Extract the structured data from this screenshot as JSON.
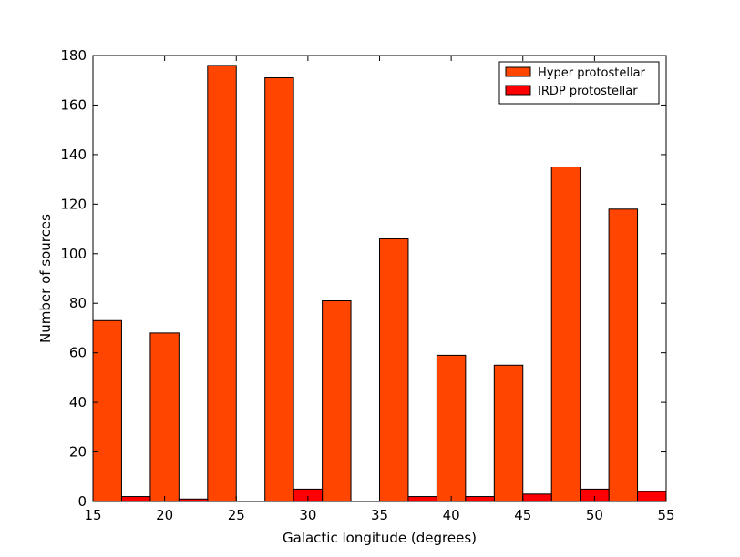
{
  "chart_data": {
    "type": "bar",
    "title": "",
    "xlabel": "Galactic longitude (degrees)",
    "ylabel": "Number of sources",
    "xlim": [
      15,
      55
    ],
    "ylim": [
      0,
      180
    ],
    "x_ticks": [
      15,
      20,
      25,
      30,
      35,
      40,
      45,
      50,
      55
    ],
    "y_ticks": [
      0,
      20,
      40,
      60,
      80,
      100,
      120,
      140,
      160,
      180
    ],
    "bin_edges": [
      15,
      19,
      23,
      27,
      31,
      35,
      39,
      43,
      47,
      51,
      55
    ],
    "grid": false,
    "legend_position": "top-right",
    "series": [
      {
        "name": "Hyper protostellar",
        "color": "#ff4500",
        "values": [
          73,
          68,
          176,
          171,
          81,
          106,
          59,
          55,
          135,
          118
        ]
      },
      {
        "name": "IRDP protostellar",
        "color": "#ff0000",
        "values": [
          2,
          1,
          0,
          5,
          0,
          2,
          2,
          3,
          5,
          4
        ]
      }
    ]
  }
}
